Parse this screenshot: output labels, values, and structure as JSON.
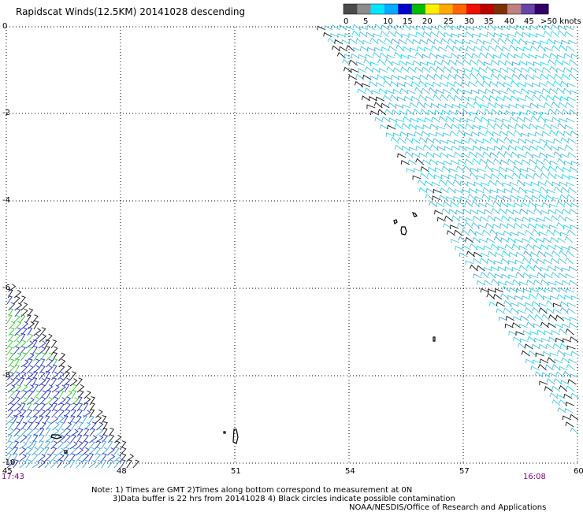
{
  "title": "Rapidscat Winds(12.5KM) 20141028 descending",
  "legend": {
    "labels": [
      "0",
      "5",
      "10",
      "15",
      "20",
      "25",
      "30",
      "35",
      "40",
      "45",
      ">50 knots"
    ],
    "colors": [
      "#4a4a4a",
      "#8c8c8c",
      "#00e5ff",
      "#00aaff",
      "#0000cc",
      "#00bb00",
      "#ffee00",
      "#ffaa00",
      "#ff6600",
      "#ee1100",
      "#bb0000",
      "#7a3300",
      "#c08080",
      "#6644aa",
      "#330066"
    ]
  },
  "axes": {
    "lon_labels": [
      "45",
      "48",
      "51",
      "54",
      "57",
      "60"
    ],
    "lat_labels": [
      "0",
      "-2",
      "-4",
      "-6",
      "-8",
      "-10"
    ]
  },
  "times": {
    "left": "17:43",
    "right": "16:08"
  },
  "notes": {
    "line1": "Note: 1) Times are GMT 2)Times along bottom correspond to measurement at 0N",
    "line2": "3)Data buffer is 22 hrs from 20141028 4) Black circles indicate possible contamination",
    "credit": "NOAA/NESDIS/Office of Research and Applications"
  }
}
